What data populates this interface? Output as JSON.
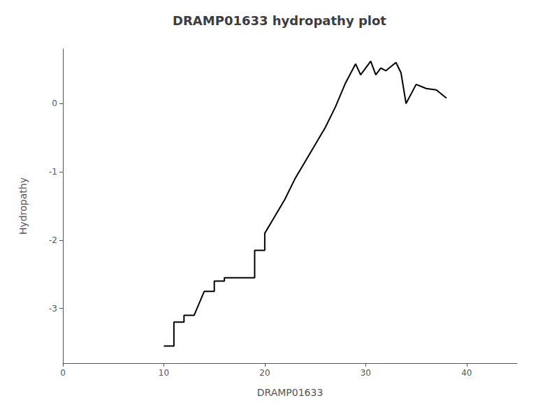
{
  "chart_data": {
    "type": "line",
    "title": "DRAMP01633 hydropathy plot",
    "xlabel": "DRAMP01633",
    "ylabel": "Hydropathy",
    "xlim": [
      0,
      45
    ],
    "ylim": [
      -3.8,
      0.8
    ],
    "xticks": [
      0,
      10,
      20,
      30,
      40
    ],
    "yticks": [
      0,
      -1,
      -2,
      -3
    ],
    "grid": false,
    "color": "#000000",
    "x": [
      10,
      11,
      11,
      12,
      12,
      13,
      14,
      15,
      15,
      16,
      16,
      17,
      18,
      19,
      19,
      20,
      20,
      21,
      22,
      23,
      24,
      25,
      26,
      27,
      28,
      29,
      29.5,
      30,
      30.5,
      31,
      31.5,
      32,
      33,
      33.5,
      34,
      35,
      36,
      37,
      38
    ],
    "values": [
      -3.55,
      -3.55,
      -3.2,
      -3.2,
      -3.1,
      -3.1,
      -2.75,
      -2.75,
      -2.6,
      -2.6,
      -2.55,
      -2.55,
      -2.55,
      -2.55,
      -2.15,
      -2.15,
      -1.9,
      -1.65,
      -1.4,
      -1.1,
      -0.85,
      -0.6,
      -0.35,
      -0.05,
      0.3,
      0.58,
      0.42,
      0.52,
      0.62,
      0.42,
      0.52,
      0.48,
      0.6,
      0.45,
      0.0,
      0.28,
      0.22,
      0.2,
      0.08
    ]
  }
}
